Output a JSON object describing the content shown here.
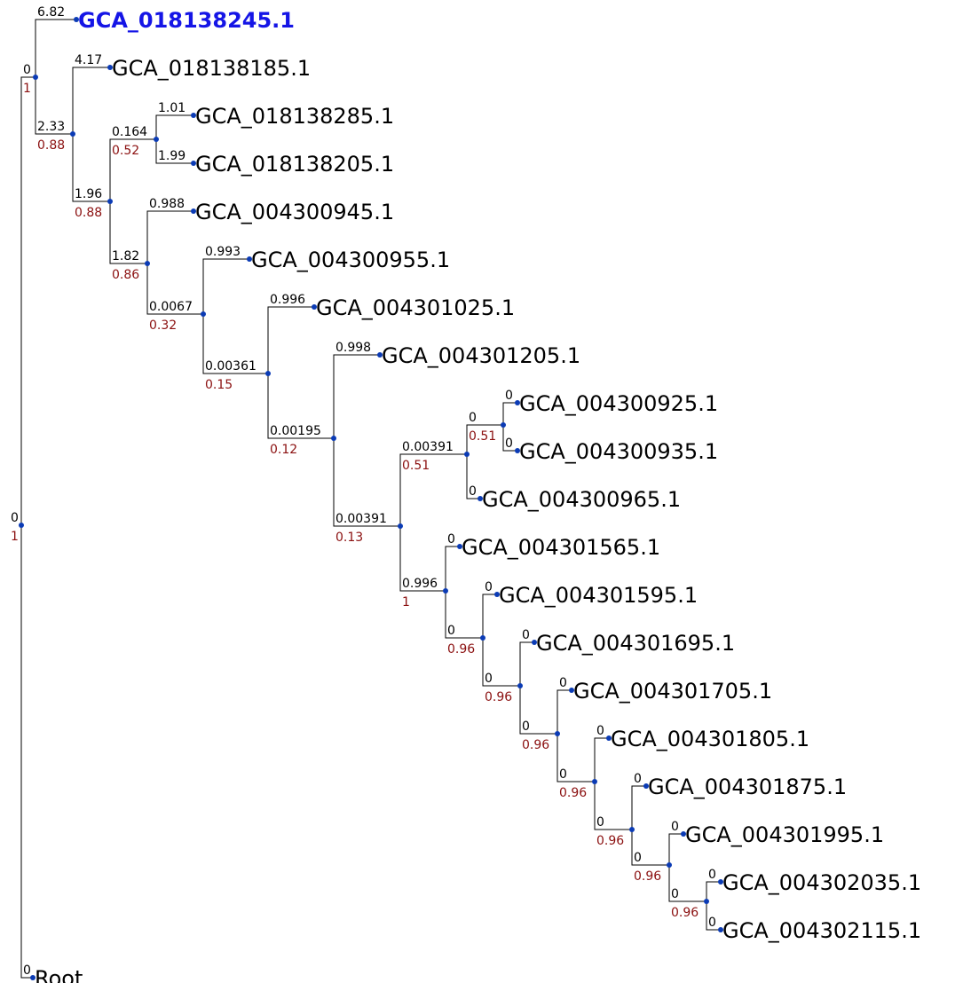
{
  "tree": {
    "colors": {
      "edge": "#000000",
      "node": "#0b3bb5",
      "highlight_leaf": "#1515e6",
      "support": "#8b1010"
    },
    "nodes": [
      {
        "id": "n0",
        "parent": null,
        "branch_length": "0",
        "support": "1"
      },
      {
        "id": "n1",
        "parent": "n0",
        "branch_length": "0",
        "support": "1"
      },
      {
        "id": "l1",
        "parent": "n1",
        "branch_length": "6.82",
        "label": "GCA_018138245.1",
        "highlight": true
      },
      {
        "id": "n2",
        "parent": "n1",
        "branch_length": "2.33",
        "support": "0.88"
      },
      {
        "id": "l2",
        "parent": "n2",
        "branch_length": "4.17",
        "label": "GCA_018138185.1"
      },
      {
        "id": "n3",
        "parent": "n2",
        "branch_length": "1.96",
        "support": "0.88"
      },
      {
        "id": "n4",
        "parent": "n3",
        "branch_length": "0.164",
        "support": "0.52"
      },
      {
        "id": "l3",
        "parent": "n4",
        "branch_length": "1.01",
        "label": "GCA_018138285.1"
      },
      {
        "id": "l4",
        "parent": "n4",
        "branch_length": "1.99",
        "label": "GCA_018138205.1"
      },
      {
        "id": "n5",
        "parent": "n3",
        "branch_length": "1.82",
        "support": "0.86"
      },
      {
        "id": "l5",
        "parent": "n5",
        "branch_length": "0.988",
        "label": "GCA_004300945.1"
      },
      {
        "id": "n6",
        "parent": "n5",
        "branch_length": "0.0067",
        "support": "0.32"
      },
      {
        "id": "l6",
        "parent": "n6",
        "branch_length": "0.993",
        "label": "GCA_004300955.1"
      },
      {
        "id": "n7",
        "parent": "n6",
        "branch_length": "0.00361",
        "support": "0.15"
      },
      {
        "id": "l7",
        "parent": "n7",
        "branch_length": "0.996",
        "label": "GCA_004301025.1"
      },
      {
        "id": "n8",
        "parent": "n7",
        "branch_length": "0.00195",
        "support": "0.12"
      },
      {
        "id": "l8",
        "parent": "n8",
        "branch_length": "0.998",
        "label": "GCA_004301205.1"
      },
      {
        "id": "n9",
        "parent": "n8",
        "branch_length": "0.00391",
        "support": "0.13"
      },
      {
        "id": "n10",
        "parent": "n9",
        "branch_length": "0.00391",
        "support": "0.51"
      },
      {
        "id": "n11",
        "parent": "n10",
        "branch_length": "0",
        "support": "0.51"
      },
      {
        "id": "l9",
        "parent": "n11",
        "branch_length": "0",
        "label": "GCA_004300925.1"
      },
      {
        "id": "l10",
        "parent": "n11",
        "branch_length": "0",
        "label": "GCA_004300935.1"
      },
      {
        "id": "l11",
        "parent": "n10",
        "branch_length": "0",
        "label": "GCA_004300965.1"
      },
      {
        "id": "n12",
        "parent": "n9",
        "branch_length": "0.996",
        "support": "1"
      },
      {
        "id": "l12",
        "parent": "n12",
        "branch_length": "0",
        "label": "GCA_004301565.1"
      },
      {
        "id": "n13",
        "parent": "n12",
        "branch_length": "0",
        "support": "0.96"
      },
      {
        "id": "l13",
        "parent": "n13",
        "branch_length": "0",
        "label": "GCA_004301595.1"
      },
      {
        "id": "n14",
        "parent": "n13",
        "branch_length": "0",
        "support": "0.96"
      },
      {
        "id": "l14",
        "parent": "n14",
        "branch_length": "0",
        "label": "GCA_004301695.1"
      },
      {
        "id": "n15",
        "parent": "n14",
        "branch_length": "0",
        "support": "0.96"
      },
      {
        "id": "l15",
        "parent": "n15",
        "branch_length": "0",
        "label": "GCA_004301705.1"
      },
      {
        "id": "n16",
        "parent": "n15",
        "branch_length": "0",
        "support": "0.96"
      },
      {
        "id": "l16",
        "parent": "n16",
        "branch_length": "0",
        "label": "GCA_004301805.1"
      },
      {
        "id": "n17",
        "parent": "n16",
        "branch_length": "0",
        "support": "0.96"
      },
      {
        "id": "l17",
        "parent": "n17",
        "branch_length": "0",
        "label": "GCA_004301875.1"
      },
      {
        "id": "n18",
        "parent": "n17",
        "branch_length": "0",
        "support": "0.96"
      },
      {
        "id": "l18",
        "parent": "n18",
        "branch_length": "0",
        "label": "GCA_004301995.1"
      },
      {
        "id": "n19",
        "parent": "n18",
        "branch_length": "0",
        "support": "0.96"
      },
      {
        "id": "l19",
        "parent": "n19",
        "branch_length": "0",
        "label": "GCA_004302035.1"
      },
      {
        "id": "l20",
        "parent": "n19",
        "branch_length": "0",
        "label": "GCA_004302115.1"
      },
      {
        "id": "l21",
        "parent": "n0",
        "branch_length": "0",
        "label": "Root"
      }
    ]
  }
}
